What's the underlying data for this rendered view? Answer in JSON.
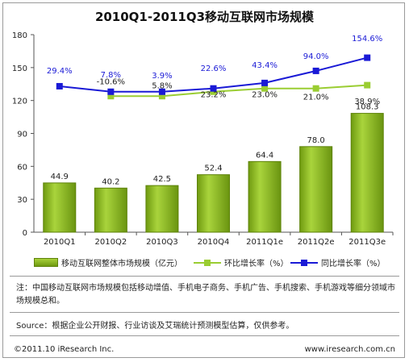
{
  "header": {
    "title": "2010Q1-2011Q3移动互联网市场规模"
  },
  "colors": {
    "bar": "#84b51c",
    "ring": "#9acd32",
    "yoy": "#1a1ad6"
  },
  "chart_data": {
    "type": "bar",
    "categories": [
      "2010Q1",
      "2010Q2",
      "2010Q3",
      "2010Q4",
      "2011Q1e",
      "2011Q2e",
      "2011Q3e"
    ],
    "ylim": [
      0,
      180
    ],
    "yticks": [
      0,
      30,
      60,
      90,
      120,
      150,
      180
    ],
    "series": [
      {
        "name": "移动互联网整体市场规模（亿元）",
        "kind": "bar",
        "values": [
          44.9,
          40.2,
          42.5,
          52.4,
          64.4,
          78.0,
          108.3
        ],
        "labels": [
          "44.9",
          "40.2",
          "42.5",
          "52.4",
          "64.4",
          "78.0",
          "108.3"
        ]
      },
      {
        "name": "环比增长率（%）",
        "kind": "line",
        "values": [
          null,
          -10.6,
          5.8,
          23.2,
          23.0,
          21.0,
          38.9
        ],
        "labels": [
          "",
          "-10.6%",
          "5.8%",
          "23.2%",
          "23.0%",
          "21.0%",
          "38.9%"
        ]
      },
      {
        "name": "同比增长率（%）",
        "kind": "line",
        "values": [
          29.4,
          7.8,
          3.9,
          22.6,
          43.4,
          94.0,
          154.6
        ],
        "labels": [
          "29.4%",
          "7.8%",
          "3.9%",
          "22.6%",
          "43.4%",
          "94.0%",
          "154.6%"
        ]
      }
    ]
  },
  "legend": {
    "bar": "移动互联网整体市场规模（亿元）",
    "ring": "环比增长率（%）",
    "yoy": "同比增长率（%）"
  },
  "footer": {
    "note": "注：中国移动互联网市场规模包括移动增值、手机电子商务、手机广告、手机搜索、手机游戏等细分领域市场规模总和。",
    "source": "Source：根据企业公开财报、行业访谈及艾瑞统计预测模型估算，仅供参考。",
    "copyright": "©2011.10 iResearch Inc.",
    "website": "www.iresearch.com.cn"
  }
}
